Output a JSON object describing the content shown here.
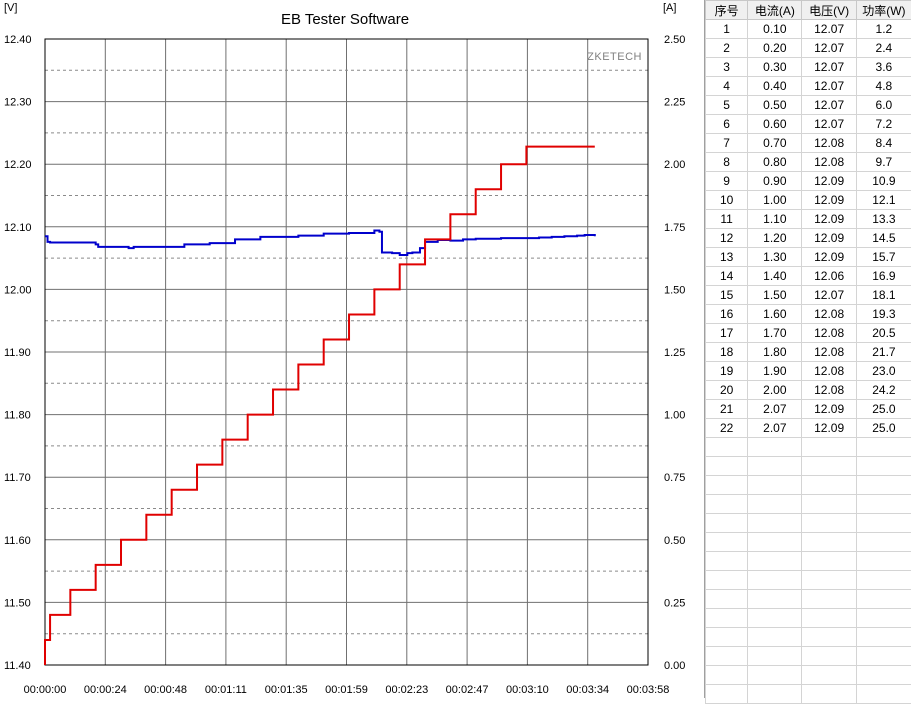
{
  "chart_data": {
    "type": "line",
    "title": "EB Tester Software",
    "watermark": "ZKETECH",
    "y_left_unit": "[V]",
    "y_right_unit": "[A]",
    "x_ticks": [
      "00:00:00",
      "00:00:24",
      "00:00:48",
      "00:01:11",
      "00:01:35",
      "00:01:59",
      "00:02:23",
      "00:02:47",
      "00:03:10",
      "00:03:34",
      "00:03:58"
    ],
    "x_range_seconds": [
      0,
      238
    ],
    "y_left_ticks": [
      "12.40",
      "12.30",
      "12.20",
      "12.10",
      "12.00",
      "11.90",
      "11.80",
      "11.70",
      "11.60",
      "11.50",
      "11.40"
    ],
    "y_left_range": [
      11.4,
      12.4
    ],
    "y_right_ticks": [
      "2.50",
      "2.25",
      "2.00",
      "1.75",
      "1.50",
      "1.25",
      "1.00",
      "0.75",
      "0.50",
      "0.25",
      "0.00"
    ],
    "y_right_range": [
      0,
      2.5
    ],
    "grid": true,
    "series": [
      {
        "axis": "left",
        "color": "#0000cc",
        "x_seconds": [
          0,
          1,
          2,
          20,
          21,
          33,
          35,
          55,
          65,
          75,
          85,
          100,
          110,
          120,
          130,
          132,
          133,
          137,
          140,
          143,
          145,
          148,
          150,
          155,
          160,
          165,
          170,
          180,
          190,
          195,
          200,
          205,
          210,
          213,
          217
        ],
        "values": [
          12.085,
          12.076,
          12.075,
          12.072,
          12.068,
          12.066,
          12.068,
          12.072,
          12.074,
          12.08,
          12.084,
          12.086,
          12.089,
          12.09,
          12.094,
          12.092,
          12.059,
          12.058,
          12.055,
          12.058,
          12.059,
          12.066,
          12.076,
          12.079,
          12.078,
          12.08,
          12.081,
          12.082,
          12.082,
          12.083,
          12.084,
          12.085,
          12.086,
          12.087,
          12.085
        ]
      },
      {
        "axis": "right",
        "color": "#e00000",
        "x_seconds": [
          0,
          2,
          10,
          20,
          30,
          40,
          50,
          60,
          70,
          80,
          90,
          100,
          110,
          120,
          130,
          140,
          150,
          160,
          170,
          180,
          190,
          201,
          204,
          217
        ],
        "values": [
          0.1,
          0.2,
          0.3,
          0.4,
          0.5,
          0.6,
          0.7,
          0.8,
          0.9,
          1.0,
          1.1,
          1.2,
          1.3,
          1.4,
          1.5,
          1.6,
          1.7,
          1.8,
          1.9,
          2.0,
          2.07,
          2.07,
          2.07,
          2.07
        ]
      }
    ]
  },
  "table": {
    "headers": [
      "序号",
      "电流(A)",
      "电压(V)",
      "功率(W)"
    ],
    "rows": [
      [
        "1",
        "0.10",
        "12.07",
        "1.2"
      ],
      [
        "2",
        "0.20",
        "12.07",
        "2.4"
      ],
      [
        "3",
        "0.30",
        "12.07",
        "3.6"
      ],
      [
        "4",
        "0.40",
        "12.07",
        "4.8"
      ],
      [
        "5",
        "0.50",
        "12.07",
        "6.0"
      ],
      [
        "6",
        "0.60",
        "12.07",
        "7.2"
      ],
      [
        "7",
        "0.70",
        "12.08",
        "8.4"
      ],
      [
        "8",
        "0.80",
        "12.08",
        "9.7"
      ],
      [
        "9",
        "0.90",
        "12.09",
        "10.9"
      ],
      [
        "10",
        "1.00",
        "12.09",
        "12.1"
      ],
      [
        "11",
        "1.10",
        "12.09",
        "13.3"
      ],
      [
        "12",
        "1.20",
        "12.09",
        "14.5"
      ],
      [
        "13",
        "1.30",
        "12.09",
        "15.7"
      ],
      [
        "14",
        "1.40",
        "12.06",
        "16.9"
      ],
      [
        "15",
        "1.50",
        "12.07",
        "18.1"
      ],
      [
        "16",
        "1.60",
        "12.08",
        "19.3"
      ],
      [
        "17",
        "1.70",
        "12.08",
        "20.5"
      ],
      [
        "18",
        "1.80",
        "12.08",
        "21.7"
      ],
      [
        "19",
        "1.90",
        "12.08",
        "23.0"
      ],
      [
        "20",
        "2.00",
        "12.08",
        "24.2"
      ],
      [
        "21",
        "2.07",
        "12.09",
        "25.0"
      ],
      [
        "22",
        "2.07",
        "12.09",
        "25.0"
      ]
    ]
  }
}
